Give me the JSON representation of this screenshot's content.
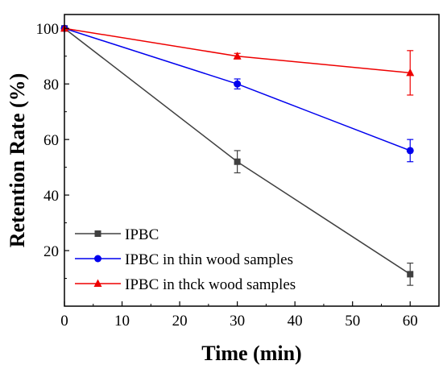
{
  "chart_data": {
    "type": "line",
    "xlabel": "Time (min)",
    "ylabel": "Retention Rate (%)",
    "xlim": [
      0,
      65
    ],
    "ylim": [
      0,
      105
    ],
    "x_ticks": [
      0,
      10,
      20,
      30,
      40,
      50,
      60
    ],
    "y_ticks": [
      20,
      40,
      60,
      80,
      100
    ],
    "grid": false,
    "legend_position": "bottom-left",
    "series": [
      {
        "name": "IPBC",
        "color": "#404040",
        "marker": "square",
        "x": [
          0,
          30,
          60
        ],
        "y": [
          100,
          52,
          11.5
        ],
        "err": [
          0,
          4,
          4
        ]
      },
      {
        "name": "IPBC in thin wood samples",
        "color": "#0000ee",
        "marker": "circle",
        "x": [
          0,
          30,
          60
        ],
        "y": [
          100,
          80,
          56
        ],
        "err": [
          0,
          1.8,
          4
        ]
      },
      {
        "name": "IPBC in thck wood samples",
        "color": "#ee0000",
        "marker": "triangle",
        "x": [
          0,
          30,
          60
        ],
        "y": [
          100,
          90,
          84
        ],
        "err": [
          0,
          1,
          8
        ]
      }
    ]
  }
}
